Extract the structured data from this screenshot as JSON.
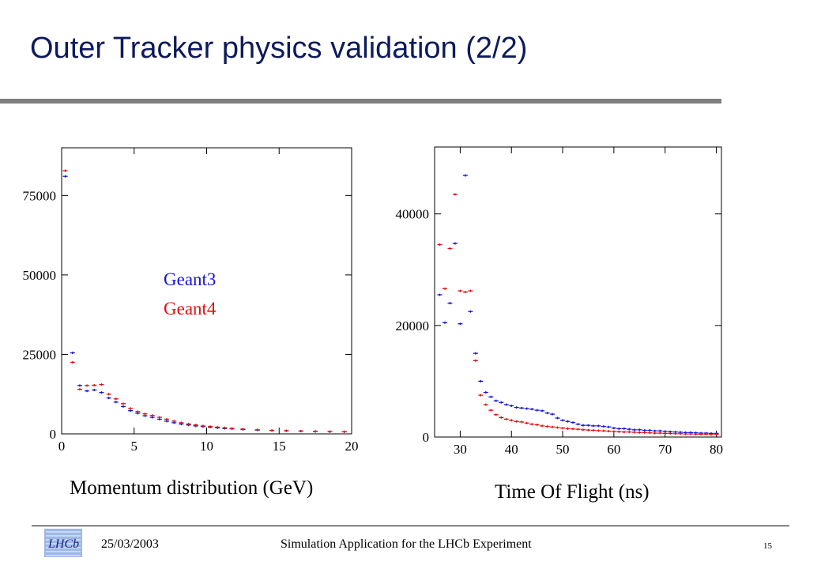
{
  "slide": {
    "title": "Outer Tracker physics validation (2/2)",
    "footer_date": "25/03/2003",
    "footer_center": "Simulation Application for the LHCb Experiment",
    "page_number": "15",
    "logo_icon": "lhcb-logo-icon"
  },
  "colors": {
    "geant3": "#1414d4",
    "geant4": "#e01010",
    "title": "#0d1b5c",
    "rule": "#7f7f7f"
  },
  "captions": {
    "momentum": "Momentum distribution (GeV)",
    "tof": "Time Of Flight (ns)"
  },
  "legend": {
    "geant3": "Geant3",
    "geant4": "Geant4"
  },
  "chart_data": [
    {
      "type": "scatter",
      "xlim": [
        0,
        20
      ],
      "ylim": [
        0,
        90000
      ],
      "xticks": [
        0,
        5,
        10,
        15,
        20
      ],
      "xtick_labels": [
        "0",
        "5",
        "10",
        "15",
        "20"
      ],
      "yticks": [
        0,
        25000,
        50000,
        75000
      ],
      "ytick_labels": [
        "0",
        "25000",
        "50000",
        "75000"
      ],
      "legend_position": "center",
      "series": [
        {
          "name": "Geant3",
          "x": [
            0.25,
            0.75,
            1.25,
            1.75,
            2.25,
            2.75,
            3.25,
            3.75,
            4.25,
            4.75,
            5.25,
            5.75,
            6.25,
            6.75,
            7.25,
            7.75,
            8.25,
            8.75,
            9.25,
            9.75,
            10.25,
            10.75,
            11.25,
            11.75,
            12.5,
            13.5,
            14.5,
            15.5,
            16.5,
            17.5,
            18.5,
            19.5
          ],
          "y": [
            81000,
            25500,
            15200,
            13500,
            13800,
            13000,
            11300,
            10000,
            8600,
            7300,
            6500,
            5700,
            5200,
            4600,
            4000,
            3500,
            3100,
            2800,
            2500,
            2300,
            2100,
            1900,
            1700,
            1600,
            1400,
            1200,
            1050,
            950,
            850,
            750,
            700,
            650
          ]
        },
        {
          "name": "Geant4",
          "x": [
            0.25,
            0.75,
            1.25,
            1.75,
            2.25,
            2.75,
            3.25,
            3.75,
            4.25,
            4.75,
            5.25,
            5.75,
            6.25,
            6.75,
            7.25,
            7.75,
            8.25,
            8.75,
            9.25,
            9.75,
            10.25,
            10.75,
            11.25,
            11.75,
            12.5,
            13.5,
            14.5,
            15.5,
            16.5,
            17.5,
            18.5,
            19.5
          ],
          "y": [
            82800,
            22500,
            14000,
            15200,
            15300,
            15500,
            12500,
            11000,
            9500,
            8000,
            7000,
            6300,
            5800,
            5200,
            4600,
            4000,
            3500,
            3100,
            2800,
            2500,
            2300,
            2100,
            1900,
            1700,
            1500,
            1300,
            1100,
            1000,
            900,
            800,
            700,
            650
          ]
        }
      ]
    },
    {
      "type": "scatter",
      "xlim": [
        25,
        81
      ],
      "ylim": [
        0,
        52000
      ],
      "xticks": [
        30,
        40,
        50,
        60,
        70,
        80
      ],
      "xtick_labels": [
        "30",
        "40",
        "50",
        "60",
        "70",
        "80"
      ],
      "yticks": [
        0,
        20000,
        40000
      ],
      "ytick_labels": [
        "0",
        "20000",
        "40000"
      ],
      "series": [
        {
          "name": "Geant3",
          "x": [
            26,
            27,
            28,
            29,
            30,
            31,
            32,
            33,
            34,
            35,
            36,
            37,
            38,
            39,
            40,
            41,
            42,
            43,
            44,
            45,
            46,
            47,
            48,
            49,
            50,
            51,
            52,
            53,
            54,
            55,
            56,
            57,
            58,
            59,
            60,
            61,
            62,
            63,
            64,
            65,
            66,
            67,
            68,
            69,
            70,
            71,
            72,
            73,
            74,
            75,
            76,
            77,
            78,
            79,
            80
          ],
          "y": [
            25500,
            20500,
            24000,
            34700,
            20300,
            46900,
            22500,
            15000,
            10000,
            8000,
            7200,
            6500,
            6200,
            5800,
            5600,
            5300,
            5200,
            5100,
            5000,
            4800,
            4700,
            4300,
            4100,
            3400,
            3000,
            2800,
            2600,
            2300,
            2100,
            2100,
            2000,
            2000,
            1900,
            1800,
            1600,
            1500,
            1500,
            1400,
            1300,
            1300,
            1200,
            1200,
            1100,
            1100,
            1000,
            950,
            900,
            850,
            800,
            800,
            750,
            700,
            700,
            650,
            650
          ]
        },
        {
          "name": "Geant4",
          "x": [
            26,
            27,
            28,
            29,
            30,
            31,
            32,
            33,
            34,
            35,
            36,
            37,
            38,
            39,
            40,
            41,
            42,
            43,
            44,
            45,
            46,
            47,
            48,
            49,
            50,
            51,
            52,
            53,
            54,
            55,
            56,
            57,
            58,
            59,
            60,
            61,
            62,
            63,
            64,
            65,
            66,
            67,
            68,
            69,
            70,
            71,
            72,
            73,
            74,
            75,
            76,
            77,
            78,
            79,
            80
          ],
          "y": [
            34500,
            26600,
            33800,
            43500,
            26200,
            26000,
            26200,
            13700,
            7500,
            5800,
            4800,
            4000,
            3500,
            3200,
            3000,
            2800,
            2700,
            2500,
            2300,
            2200,
            2000,
            1900,
            1800,
            1700,
            1600,
            1500,
            1450,
            1400,
            1300,
            1250,
            1200,
            1150,
            1100,
            1050,
            1000,
            950,
            900,
            900,
            850,
            800,
            800,
            750,
            700,
            700,
            650,
            650,
            600,
            600,
            550,
            550,
            500,
            500,
            500,
            450,
            450
          ]
        }
      ]
    }
  ]
}
